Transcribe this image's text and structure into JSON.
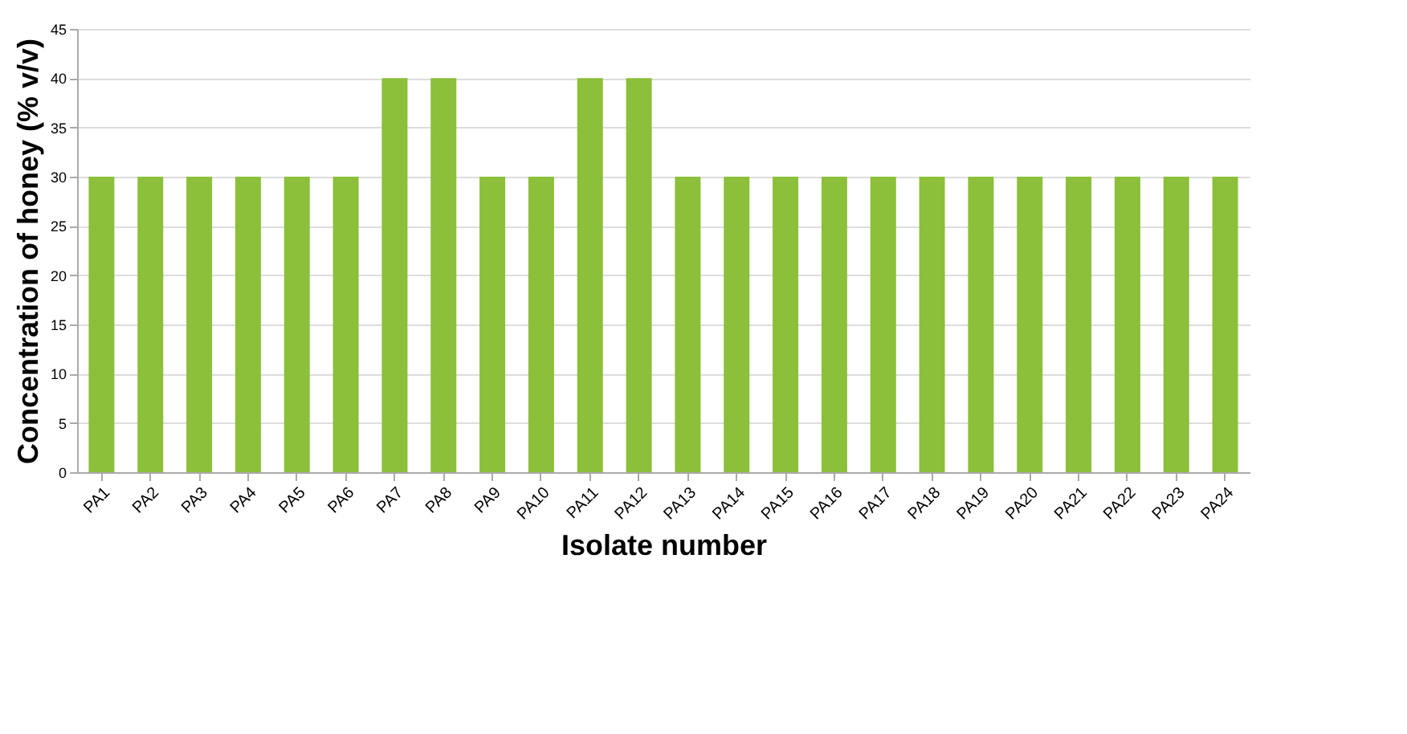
{
  "chart_data": {
    "type": "bar",
    "xlabel": "Isolate number",
    "ylabel": "Concentration of honey (% v/v)",
    "categories": [
      "PA1",
      "PA2",
      "PA3",
      "PA4",
      "PA5",
      "PA6",
      "PA7",
      "PA8",
      "PA9",
      "PA10",
      "PA11",
      "PA12",
      "PA13",
      "PA14",
      "PA15",
      "PA16",
      "PA17",
      "PA18",
      "PA19",
      "PA20",
      "PA21",
      "PA22",
      "PA23",
      "PA24"
    ],
    "values": [
      30,
      30,
      30,
      30,
      30,
      30,
      40,
      40,
      30,
      30,
      40,
      40,
      30,
      30,
      30,
      30,
      30,
      30,
      30,
      30,
      30,
      30,
      30,
      30
    ],
    "color": "#8cbf3a",
    "ylim": [
      0,
      45
    ],
    "yticks": [
      0,
      5,
      10,
      15,
      20,
      25,
      30,
      35,
      40,
      45
    ],
    "grid": "y"
  }
}
